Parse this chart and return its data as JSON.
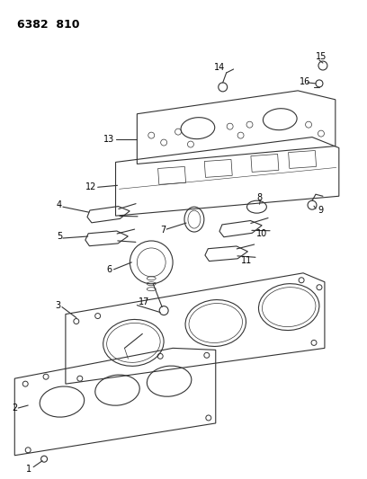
{
  "title_text": "6382  810",
  "bg_color": "#ffffff",
  "line_color": "#333333",
  "label_color": "#000000",
  "fig_width": 4.08,
  "fig_height": 5.33,
  "dpi": 100
}
